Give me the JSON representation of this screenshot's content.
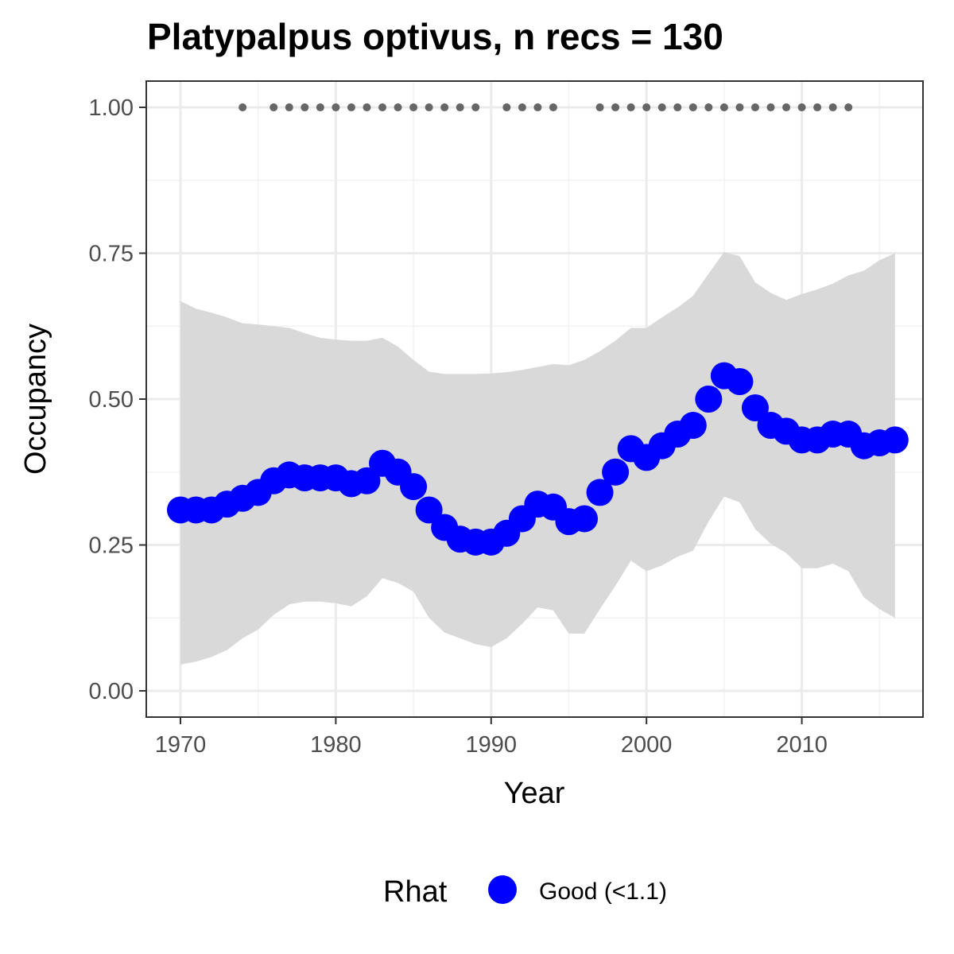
{
  "chart_data": {
    "type": "line",
    "title": "Platypalpus optivus, n recs = 130",
    "xlabel": "Year",
    "ylabel": "Occupancy",
    "xlim": [
      1967.8,
      2017.8
    ],
    "ylim": [
      -0.045,
      1.045
    ],
    "x_ticks": [
      1970,
      1980,
      1990,
      2000,
      2010
    ],
    "x_tick_labels": [
      "1970",
      "1980",
      "1990",
      "2000",
      "2010"
    ],
    "y_ticks": [
      0,
      0.25,
      0.5,
      0.75,
      1.0
    ],
    "y_tick_labels": [
      "0.00",
      "0.25",
      "0.50",
      "0.75",
      "1.00"
    ],
    "grid": true,
    "legend": {
      "title": "Rhat",
      "position": "bottom",
      "entries": [
        {
          "label": "Good (<1.1)",
          "color": "#0000ff"
        }
      ]
    },
    "colors": {
      "points": "#0000ff",
      "ribbon": "#d9d9d9",
      "records": "#666666"
    },
    "series": [
      {
        "name": "Good (<1.1)",
        "x": [
          1970,
          1971,
          1972,
          1973,
          1974,
          1975,
          1976,
          1977,
          1978,
          1979,
          1980,
          1981,
          1982,
          1983,
          1984,
          1985,
          1986,
          1987,
          1988,
          1989,
          1990,
          1991,
          1992,
          1993,
          1994,
          1995,
          1996,
          1997,
          1998,
          1999,
          2000,
          2001,
          2002,
          2003,
          2004,
          2005,
          2006,
          2007,
          2008,
          2009,
          2010,
          2011,
          2012,
          2013,
          2014,
          2015,
          2016
        ],
        "y": [
          0.31,
          0.31,
          0.31,
          0.32,
          0.33,
          0.34,
          0.36,
          0.37,
          0.365,
          0.365,
          0.365,
          0.355,
          0.36,
          0.39,
          0.375,
          0.35,
          0.31,
          0.28,
          0.26,
          0.255,
          0.255,
          0.27,
          0.295,
          0.32,
          0.315,
          0.29,
          0.295,
          0.34,
          0.375,
          0.415,
          0.4,
          0.42,
          0.44,
          0.455,
          0.5,
          0.54,
          0.53,
          0.485,
          0.455,
          0.445,
          0.43,
          0.43,
          0.44,
          0.44,
          0.42,
          0.425,
          0.43
        ],
        "lower": [
          0.045,
          0.05,
          0.058,
          0.07,
          0.09,
          0.105,
          0.13,
          0.148,
          0.153,
          0.153,
          0.15,
          0.145,
          0.162,
          0.193,
          0.185,
          0.17,
          0.125,
          0.1,
          0.09,
          0.08,
          0.075,
          0.09,
          0.115,
          0.143,
          0.138,
          0.098,
          0.098,
          0.14,
          0.18,
          0.223,
          0.205,
          0.215,
          0.23,
          0.24,
          0.29,
          0.333,
          0.323,
          0.277,
          0.252,
          0.236,
          0.21,
          0.21,
          0.218,
          0.205,
          0.16,
          0.14,
          0.125
        ],
        "upper": [
          0.668,
          0.655,
          0.648,
          0.64,
          0.63,
          0.628,
          0.625,
          0.622,
          0.613,
          0.605,
          0.602,
          0.6,
          0.6,
          0.605,
          0.59,
          0.567,
          0.547,
          0.543,
          0.543,
          0.543,
          0.544,
          0.546,
          0.55,
          0.555,
          0.56,
          0.558,
          0.567,
          0.582,
          0.6,
          0.622,
          0.622,
          0.64,
          0.657,
          0.677,
          0.715,
          0.752,
          0.745,
          0.7,
          0.682,
          0.67,
          0.68,
          0.688,
          0.698,
          0.712,
          0.72,
          0.738,
          0.75
        ]
      }
    ],
    "record_years": [
      1974,
      1976,
      1977,
      1978,
      1979,
      1980,
      1981,
      1982,
      1983,
      1984,
      1985,
      1986,
      1987,
      1988,
      1989,
      1991,
      1992,
      1993,
      1994,
      1997,
      1998,
      1999,
      2000,
      2001,
      2002,
      2003,
      2004,
      2005,
      2006,
      2007,
      2008,
      2009,
      2010,
      2011,
      2012,
      2013
    ],
    "record_y": 1.0
  }
}
